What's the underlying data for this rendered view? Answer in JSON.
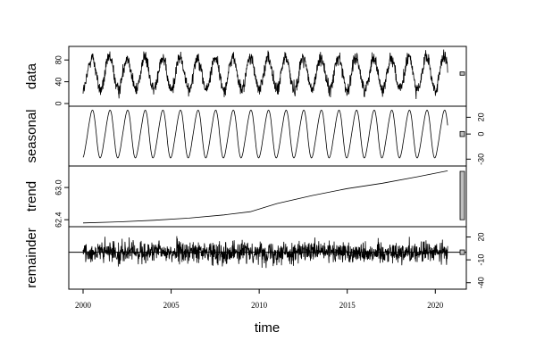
{
  "chart_data": {
    "type": "line",
    "title": "",
    "xlabel": "time",
    "xlim": [
      2000,
      2021
    ],
    "x_ticks": [
      "2000",
      "2005",
      "2010",
      "2015",
      "2020"
    ],
    "x_tick_values": [
      2000,
      2005,
      2010,
      2015,
      2020
    ],
    "panels": [
      {
        "name": "data",
        "ylim": [
          0,
          100
        ],
        "y_ticks": [
          "0",
          "40",
          "80"
        ],
        "y_tick_values": [
          0,
          40,
          80
        ],
        "axis_side": "left",
        "line_style": "noisy-seasonal",
        "annual_cycles": 21,
        "mean": 55,
        "amplitude": 30,
        "noise_sd": 9,
        "ref_bar_range": [
          52,
          58
        ]
      },
      {
        "name": "seasonal",
        "ylim": [
          -35,
          30
        ],
        "y_ticks": [
          "-30",
          "0",
          "20"
        ],
        "y_tick_values": [
          -30,
          0,
          20
        ],
        "axis_side": "right",
        "line_style": "seasonal",
        "annual_cycles": 21,
        "amplitude": 30,
        "ref_bar_range": [
          -3,
          3
        ]
      },
      {
        "name": "trend",
        "ylim": [
          62.32,
          63.35
        ],
        "y_ticks": [
          "62.4",
          "63.0"
        ],
        "y_tick_values": [
          62.4,
          63.0
        ],
        "axis_side": "left",
        "line_style": "trend",
        "points": [
          [
            2000,
            62.34
          ],
          [
            2002,
            62.36
          ],
          [
            2004,
            62.39
          ],
          [
            2006,
            62.43
          ],
          [
            2008,
            62.49
          ],
          [
            2009.5,
            62.55
          ],
          [
            2011,
            62.7
          ],
          [
            2013,
            62.85
          ],
          [
            2015,
            62.98
          ],
          [
            2017,
            63.08
          ],
          [
            2019,
            63.2
          ],
          [
            2020.7,
            63.31
          ]
        ],
        "ref_bar_range": [
          62.4,
          63.3
        ]
      },
      {
        "name": "remainder",
        "ylim": [
          -45,
          30
        ],
        "y_ticks": [
          "-40",
          "-10",
          "20"
        ],
        "y_tick_values": [
          -40,
          -10,
          20
        ],
        "axis_side": "right",
        "line_style": "noise",
        "noise_sd": 10,
        "baseline": 0,
        "ref_bar_range": [
          -3,
          3
        ]
      }
    ],
    "colors": {
      "line": "#000000",
      "ref_bar": "#bfbfbf",
      "background": "#ffffff"
    }
  }
}
